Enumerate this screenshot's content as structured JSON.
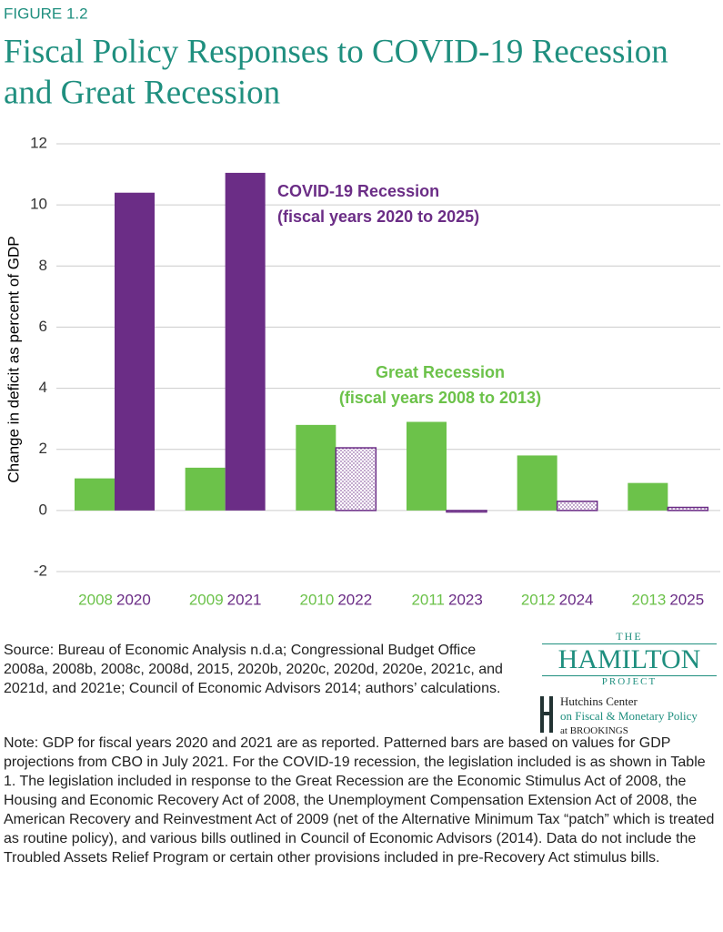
{
  "chart_data": {
    "type": "bar",
    "figure_label": "FIGURE 1.2",
    "title_lines": [
      "Fiscal Policy Responses to COVID-19 Recession",
      "and Great Recession"
    ],
    "y_label": "Change in deficit as percent of  GDP",
    "ylim": [
      -2,
      12
    ],
    "yticks": [
      -2,
      0,
      2,
      4,
      6,
      8,
      10,
      12
    ],
    "grid": true,
    "series": [
      {
        "name": "Great Recession",
        "note": "(fiscal years 2008 to 2013)",
        "color": "#6cc24a",
        "labels": [
          "2008",
          "2009",
          "2010",
          "2011",
          "2012",
          "2013"
        ],
        "values": [
          1.05,
          1.4,
          2.8,
          2.9,
          1.8,
          0.9
        ],
        "patterned": [
          false,
          false,
          false,
          false,
          false,
          false
        ]
      },
      {
        "name": "COVID-19 Recession",
        "note": "(fiscal years 2020 to 2025)",
        "color": "#6b2d86",
        "labels": [
          "2020",
          "2021",
          "2022",
          "2023",
          "2024",
          "2025"
        ],
        "values": [
          10.4,
          11.05,
          2.05,
          -0.05,
          0.3,
          0.1
        ],
        "patterned": [
          false,
          false,
          true,
          true,
          true,
          true
        ]
      }
    ]
  },
  "source": "Source: Bureau of Economic Analysis n.d.a; Congressional Budget Office 2008a, 2008b, 2008c, 2008d, 2015, 2020b, 2020c, 2020d, 2020e, 2021c, and 2021d, and 2021e; Council of Economic Advisors 2014; authors’ calculations.",
  "note": "Note: GDP for fiscal years 2020 and 2021 are as reported. Patterned bars are based on values for GDP projections from CBO in July 2021. For the COVID-19 recession, the legislation included is as shown in Table 1. The legislation included in response to the Great Recession are the Economic Stimulus Act of 2008, the Housing and Economic Recovery Act of 2008, the Unemployment Compensation Extension Act of 2008, the American Recovery and Reinvestment Act of 2009 (net of the Alternative Minimum Tax “patch” which is treated as routine policy), and various bills outlined in Council of Economic Advisors (2014). Data do not include the Troubled Assets Relief Program or certain other provisions included in pre-Recovery Act stimulus bills.",
  "logo": {
    "the": "THE",
    "name": "HAMILTON",
    "project": "PROJECT",
    "center": "Hutchins Center",
    "center_sub": "on Fiscal & Monetary Policy",
    "affiliation": "at BROOKINGS"
  }
}
